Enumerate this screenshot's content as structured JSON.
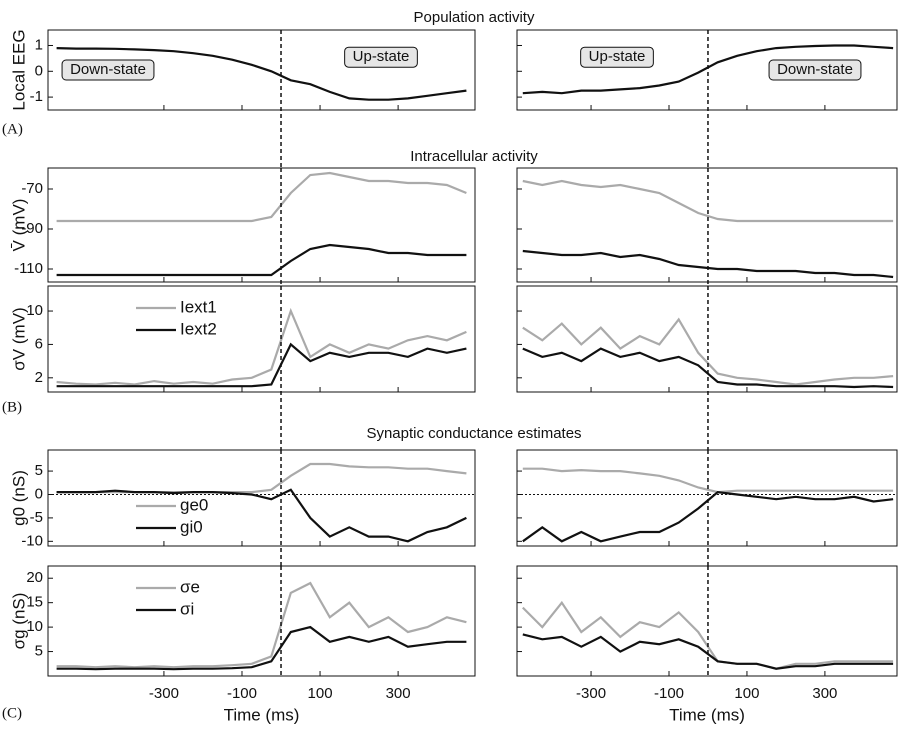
{
  "titles": [
    "Population activity",
    "Intracellular activity",
    "Synaptic conductance estimates"
  ],
  "panel_labels": [
    "(A)",
    "(B)",
    "(C)"
  ],
  "chart_data": [
    {
      "type": "line",
      "ylabel": "Local EEG",
      "x": [
        -575,
        -525,
        -475,
        -425,
        -375,
        -325,
        -275,
        -225,
        -175,
        -125,
        -75,
        -25,
        25,
        75,
        125,
        175,
        225,
        275,
        325,
        375,
        425,
        475
      ],
      "series": [
        {
          "name": "EEG",
          "color": "#111111",
          "values": [
            0.9,
            0.88,
            0.88,
            0.87,
            0.85,
            0.82,
            0.78,
            0.7,
            0.6,
            0.45,
            0.25,
            0.0,
            -0.35,
            -0.5,
            -0.8,
            -1.05,
            -1.1,
            -1.1,
            -1.05,
            -0.95,
            -0.85,
            -0.75
          ]
        }
      ],
      "xlim": [
        -597,
        497
      ],
      "ylim": [
        -1.5,
        1.6
      ],
      "xticks": [
        -300,
        -100,
        100,
        300
      ],
      "yticks": [
        -1,
        0,
        1
      ],
      "xtick_labels": false,
      "ytick_labels": true,
      "vline": 0,
      "annotations": [
        "Down-state",
        "Up-state"
      ]
    },
    {
      "type": "line",
      "x": [
        -475,
        -425,
        -375,
        -325,
        -275,
        -225,
        -175,
        -125,
        -75,
        -25,
        25,
        75,
        125,
        175,
        225,
        275,
        325,
        375,
        425,
        475
      ],
      "series": [
        {
          "name": "EEG",
          "color": "#111111",
          "values": [
            -0.85,
            -0.8,
            -0.85,
            -0.75,
            -0.75,
            -0.7,
            -0.65,
            -0.55,
            -0.4,
            -0.05,
            0.35,
            0.6,
            0.78,
            0.9,
            0.95,
            0.98,
            1.0,
            1.0,
            0.95,
            0.9
          ]
        }
      ],
      "xlim": [
        -490,
        485
      ],
      "ylim": [
        -1.5,
        1.6
      ],
      "xticks": [
        -300,
        -100,
        100,
        300
      ],
      "yticks": [
        -1,
        0,
        1
      ],
      "xtick_labels": false,
      "ytick_labels": false,
      "vline": 0,
      "annotations": [
        "Up-state",
        "Down-state"
      ]
    },
    {
      "type": "line",
      "ylabel": "V̄ (mV)",
      "x": [
        -575,
        -525,
        -475,
        -425,
        -375,
        -325,
        -275,
        -225,
        -175,
        -125,
        -75,
        -25,
        25,
        75,
        125,
        175,
        225,
        275,
        325,
        375,
        425,
        475
      ],
      "series": [
        {
          "name": "Iext1",
          "color": "#aaaaaa",
          "values": [
            -86,
            -86,
            -86,
            -86,
            -86,
            -86,
            -86,
            -86,
            -86,
            -86,
            -86,
            -84,
            -72,
            -63,
            -62,
            -64,
            -66,
            -66,
            -67,
            -67,
            -68,
            -72
          ]
        },
        {
          "name": "Iext2",
          "color": "#111111",
          "values": [
            -113,
            -113,
            -113,
            -113,
            -113,
            -113,
            -113,
            -113,
            -113,
            -113,
            -113,
            -113,
            -106,
            -100,
            -98,
            -99,
            -100,
            -102,
            -102,
            -103,
            -103,
            -103
          ]
        }
      ],
      "xlim": [
        -597,
        497
      ],
      "ylim": [
        -116.5,
        -59.5
      ],
      "xticks": [
        -300,
        -100,
        100,
        300
      ],
      "yticks": [
        -110,
        -90,
        -70
      ],
      "xtick_labels": false,
      "ytick_labels": true,
      "vline": 0
    },
    {
      "type": "line",
      "x": [
        -475,
        -425,
        -375,
        -325,
        -275,
        -225,
        -175,
        -125,
        -75,
        -25,
        25,
        75,
        125,
        175,
        225,
        275,
        325,
        375,
        425,
        475
      ],
      "series": [
        {
          "name": "Iext1",
          "color": "#aaaaaa",
          "values": [
            -66,
            -68,
            -66,
            -68,
            -69,
            -68,
            -70,
            -72,
            -77,
            -82,
            -85,
            -86,
            -86,
            -86,
            -86,
            -86,
            -86,
            -86,
            -86,
            -86
          ]
        },
        {
          "name": "Iext2",
          "color": "#111111",
          "values": [
            -101,
            -102,
            -103,
            -103,
            -102,
            -104,
            -103,
            -105,
            -108,
            -109,
            -110,
            -110,
            -111,
            -111,
            -111,
            -112,
            -112,
            -113,
            -113,
            -114
          ]
        }
      ],
      "xlim": [
        -490,
        485
      ],
      "ylim": [
        -116.5,
        -59.5
      ],
      "xticks": [
        -300,
        -100,
        100,
        300
      ],
      "yticks": [
        -110,
        -90,
        -70
      ],
      "xtick_labels": false,
      "ytick_labels": false,
      "vline": 0
    },
    {
      "type": "line",
      "ylabel": "σV (mV)",
      "x": [
        -575,
        -525,
        -475,
        -425,
        -375,
        -325,
        -275,
        -225,
        -175,
        -125,
        -75,
        -25,
        25,
        75,
        125,
        175,
        225,
        275,
        325,
        375,
        425,
        475
      ],
      "series": [
        {
          "name": "Iext1",
          "color": "#aaaaaa",
          "values": [
            1.5,
            1.3,
            1.2,
            1.4,
            1.2,
            1.6,
            1.3,
            1.5,
            1.3,
            1.8,
            2,
            3,
            10,
            4.5,
            6,
            5,
            6,
            5.5,
            6.5,
            7,
            6.5,
            7.5
          ]
        },
        {
          "name": "Iext2",
          "color": "#111111",
          "values": [
            1,
            1,
            1,
            1,
            1,
            1,
            1,
            1,
            1,
            1,
            1,
            1.2,
            6,
            4,
            5,
            4.5,
            5,
            5,
            4.5,
            5.5,
            5,
            5.5
          ]
        }
      ],
      "xlim": [
        -597,
        497
      ],
      "ylim": [
        0.3,
        13
      ],
      "xticks": [
        -300,
        -100,
        100,
        300
      ],
      "yticks": [
        2,
        6,
        10
      ],
      "xtick_labels": false,
      "ytick_labels": true,
      "vline": 0,
      "legend": "upper left"
    },
    {
      "type": "line",
      "x": [
        -475,
        -425,
        -375,
        -325,
        -275,
        -225,
        -175,
        -125,
        -75,
        -25,
        25,
        75,
        125,
        175,
        225,
        275,
        325,
        375,
        425,
        475
      ],
      "series": [
        {
          "name": "Iext1",
          "color": "#aaaaaa",
          "values": [
            8,
            6.5,
            8.5,
            6,
            8,
            5.5,
            7,
            6,
            9,
            5,
            2.5,
            2,
            1.8,
            1.5,
            1.2,
            1.5,
            1.8,
            2,
            2,
            2.2
          ]
        },
        {
          "name": "Iext2",
          "color": "#111111",
          "values": [
            5.5,
            4.5,
            5,
            4,
            5.5,
            4.5,
            5,
            4,
            4.5,
            3.5,
            1.5,
            1.2,
            1.2,
            1,
            1,
            1,
            1,
            0.9,
            1,
            0.9
          ]
        }
      ],
      "xlim": [
        -490,
        485
      ],
      "ylim": [
        0.3,
        13
      ],
      "xticks": [
        -300,
        -100,
        100,
        300
      ],
      "yticks": [
        2,
        6,
        10
      ],
      "xtick_labels": false,
      "ytick_labels": false,
      "vline": 0
    },
    {
      "type": "line",
      "ylabel": "g0 (nS)",
      "x": [
        -575,
        -525,
        -475,
        -425,
        -375,
        -325,
        -275,
        -225,
        -175,
        -125,
        -75,
        -25,
        25,
        75,
        125,
        175,
        225,
        275,
        325,
        375,
        425,
        475
      ],
      "series": [
        {
          "name": "ge0",
          "color": "#aaaaaa",
          "values": [
            0.5,
            0.5,
            0.5,
            0.5,
            0.5,
            0.5,
            0.5,
            0.5,
            0.5,
            0.5,
            0.5,
            1,
            4,
            6.5,
            6.5,
            6,
            5.8,
            5.8,
            5.5,
            5.5,
            5,
            4.5
          ]
        },
        {
          "name": "gi0",
          "color": "#111111",
          "values": [
            0.5,
            0.5,
            0.5,
            0.8,
            0.5,
            0.5,
            0.3,
            0.5,
            0.5,
            0.3,
            0,
            -1,
            1,
            -5,
            -9,
            -7,
            -9,
            -9,
            -10,
            -8,
            -7,
            -5
          ]
        }
      ],
      "xlim": [
        -597,
        497
      ],
      "ylim": [
        -11,
        9.5
      ],
      "xticks": [
        -300,
        -100,
        100,
        300
      ],
      "yticks": [
        -10,
        -5,
        0,
        5
      ],
      "xtick_labels": false,
      "ytick_labels": true,
      "vline": 0,
      "hline": 0,
      "legend": "lower left"
    },
    {
      "type": "line",
      "x": [
        -475,
        -425,
        -375,
        -325,
        -275,
        -225,
        -175,
        -125,
        -75,
        -25,
        25,
        75,
        125,
        175,
        225,
        275,
        325,
        375,
        425,
        475
      ],
      "series": [
        {
          "name": "ge0",
          "color": "#aaaaaa",
          "values": [
            5.5,
            5.5,
            5,
            5.2,
            5,
            5,
            4.5,
            4,
            3,
            1.5,
            0.5,
            0.8,
            0.8,
            0.8,
            0.8,
            0.8,
            0.8,
            0.8,
            0.8,
            0.8
          ]
        },
        {
          "name": "gi0",
          "color": "#111111",
          "values": [
            -10,
            -7,
            -10,
            -8,
            -10,
            -9,
            -8,
            -8,
            -6,
            -3,
            0.5,
            0,
            -0.5,
            -1,
            -0.5,
            -1,
            -1,
            -0.5,
            -1.5,
            -1
          ]
        }
      ],
      "xlim": [
        -490,
        485
      ],
      "ylim": [
        -11,
        9.5
      ],
      "xticks": [
        -300,
        -100,
        100,
        300
      ],
      "yticks": [
        -10,
        -5,
        0,
        5
      ],
      "xtick_labels": false,
      "ytick_labels": false,
      "vline": 0,
      "hline": 0
    },
    {
      "type": "line",
      "ylabel": "σg (nS)",
      "xlabel": "Time (ms)",
      "x": [
        -575,
        -525,
        -475,
        -425,
        -375,
        -325,
        -275,
        -225,
        -175,
        -125,
        -75,
        -25,
        25,
        75,
        125,
        175,
        225,
        275,
        325,
        375,
        425,
        475
      ],
      "series": [
        {
          "name": "σe",
          "color": "#aaaaaa",
          "values": [
            2,
            2,
            1.8,
            2,
            1.8,
            2,
            1.8,
            2,
            2,
            2.2,
            2.5,
            4,
            17,
            19,
            12,
            15,
            10,
            12,
            9,
            10,
            12,
            11
          ]
        },
        {
          "name": "σi",
          "color": "#111111",
          "values": [
            1.5,
            1.5,
            1.4,
            1.5,
            1.5,
            1.5,
            1.4,
            1.5,
            1.5,
            1.6,
            1.8,
            3,
            9,
            10,
            7,
            8,
            7,
            8,
            6,
            6.5,
            7,
            7
          ]
        }
      ],
      "xlim": [
        -597,
        497
      ],
      "ylim": [
        0,
        22.5
      ],
      "xticks": [
        -300,
        -100,
        100,
        300
      ],
      "yticks": [
        5,
        10,
        15,
        20
      ],
      "xtick_labels": true,
      "ytick_labels": true,
      "vline": 0,
      "legend": "upper left"
    },
    {
      "type": "line",
      "xlabel": "Time (ms)",
      "x": [
        -475,
        -425,
        -375,
        -325,
        -275,
        -225,
        -175,
        -125,
        -75,
        -25,
        25,
        75,
        125,
        175,
        225,
        275,
        325,
        375,
        425,
        475
      ],
      "series": [
        {
          "name": "σe",
          "color": "#aaaaaa",
          "values": [
            14,
            10,
            15,
            9,
            12,
            8,
            11,
            10,
            13,
            9,
            3,
            2.5,
            2.5,
            1.5,
            2.5,
            2.5,
            3,
            3,
            3,
            3
          ]
        },
        {
          "name": "σi",
          "color": "#111111",
          "values": [
            8.5,
            7.5,
            8,
            6,
            8,
            5,
            7,
            6.5,
            7.5,
            6,
            3,
            2.5,
            2.5,
            1.5,
            2,
            2,
            2.5,
            2.5,
            2.5,
            2.5
          ]
        }
      ],
      "xlim": [
        -490,
        485
      ],
      "ylim": [
        0,
        22.5
      ],
      "xticks": [
        -300,
        -100,
        100,
        300
      ],
      "yticks": [
        5,
        10,
        15,
        20
      ],
      "xtick_labels": true,
      "ytick_labels": false,
      "vline": 0
    }
  ]
}
